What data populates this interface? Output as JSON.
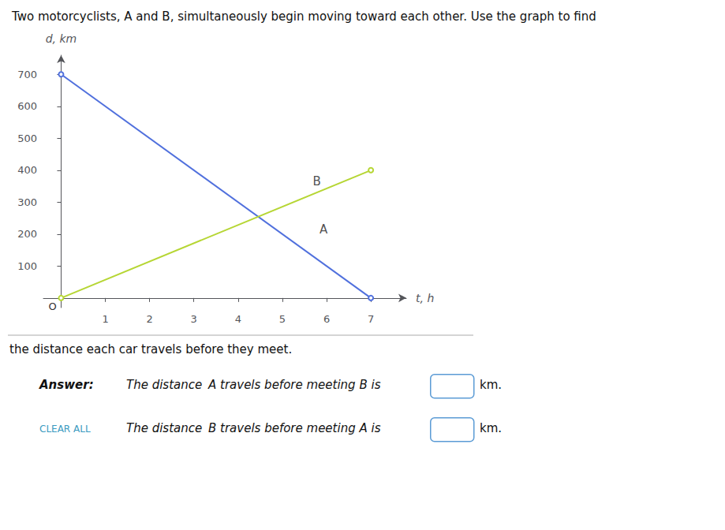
{
  "chart_data": {
    "type": "line",
    "title": "Two motorcyclists, A and B, simultaneously begin moving toward each other. Use the graph to find",
    "subtitle": "the distance each car travels before they meet.",
    "xlabel": "t, h",
    "ylabel": "d, km",
    "origin_label": "O",
    "series": [
      {
        "x": [
          0,
          7
        ],
        "values": [
          700,
          0
        ]
      },
      {
        "x": [
          0,
          7
        ],
        "values": [
          0,
          400
        ]
      }
    ],
    "annotations": [
      {
        "text": "A",
        "x": 5.75,
        "y": 215
      },
      {
        "text": "B",
        "x": 5.6,
        "y": 365
      }
    ],
    "xlim": [
      -0.4,
      7.8
    ],
    "ylim": [
      -30,
      760
    ],
    "xticks": [
      1,
      2,
      3,
      4,
      5,
      6,
      7
    ],
    "yticks": [
      100,
      200,
      300,
      400,
      500,
      600,
      700
    ],
    "grid": false,
    "answer": {
      "heading": "Answer:",
      "button": "CLEAR ALL",
      "lines": [
        "The distance  A travels before meeting B is",
        "The distance  B travels before meeting A is"
      ],
      "unit": "km."
    }
  }
}
